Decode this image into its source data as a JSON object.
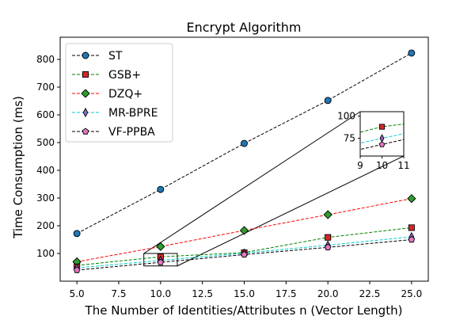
{
  "chart_data": {
    "type": "line",
    "title": "Encrypt Algorithm",
    "xlabel": "The Number of Identities/Attributes n (Vector Length)",
    "ylabel": "Time Consumption (ms)",
    "xlim": [
      4.0,
      26.0
    ],
    "ylim": [
      0,
      880
    ],
    "x_ticks": [
      "5.0",
      "7.5",
      "10.0",
      "12.5",
      "15.0",
      "17.5",
      "20.0",
      "22.5",
      "25.0"
    ],
    "y_ticks": [
      "100",
      "200",
      "300",
      "400",
      "500",
      "600",
      "700",
      "800"
    ],
    "grid": false,
    "legend_position": "top-left",
    "x": [
      5,
      10,
      15,
      20,
      25
    ],
    "series": [
      {
        "name": "ST",
        "values": [
          172,
          331,
          497,
          652,
          823
        ],
        "color": "#000000",
        "marker": "circle",
        "marker_color": "#1f77b4"
      },
      {
        "name": "GSB+",
        "values": [
          57,
          88,
          103,
          158,
          193
        ],
        "color": "#008000",
        "marker": "square",
        "marker_color": "#d62728"
      },
      {
        "name": "DZQ+",
        "values": [
          70,
          125,
          183,
          240,
          298
        ],
        "color": "#ff0000",
        "marker": "diamond",
        "marker_color": "#2ca02c"
      },
      {
        "name": "MR-BPRE",
        "values": [
          48,
          75,
          101,
          130,
          160
        ],
        "color": "#00cccc",
        "marker": "thin_diamond",
        "marker_color": "#9467bd"
      },
      {
        "name": "VF-PPBA",
        "values": [
          40,
          68,
          96,
          122,
          150
        ],
        "color": "#000000",
        "marker": "pentagon",
        "marker_color": "#e377c2"
      }
    ],
    "inset": {
      "xlim": [
        9,
        11
      ],
      "ylim": [
        55,
        105
      ],
      "x_ticks": [
        "9",
        "10",
        "11"
      ],
      "y_ticks": [
        "75",
        "100"
      ],
      "zoom_box_x": [
        9,
        11
      ],
      "zoom_box_y": [
        55,
        100
      ]
    }
  }
}
